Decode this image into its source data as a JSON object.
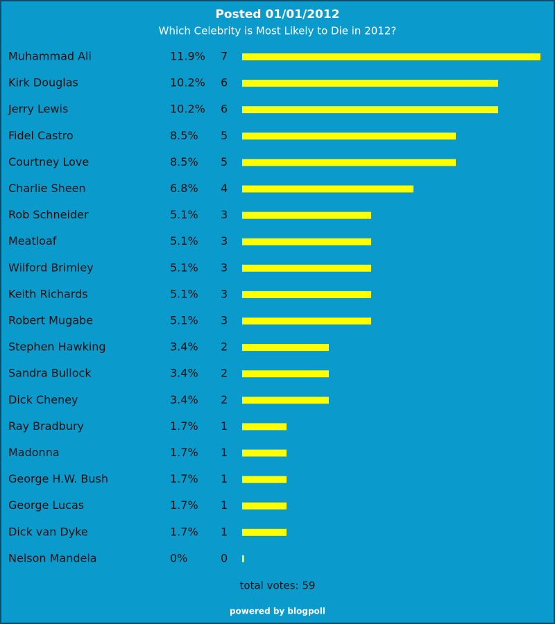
{
  "chart_data": {
    "type": "bar",
    "title": "Posted 01/01/2012",
    "subtitle": "Which Celebrity is Most Likely to Die in 2012?",
    "categories": [
      "Muhammad Ali",
      "Kirk Douglas",
      "Jerry Lewis",
      "Fidel Castro",
      "Courtney Love",
      "Charlie Sheen",
      "Rob Schneider",
      "Meatloaf",
      "Wilford Brimley",
      "Keith Richards",
      "Robert Mugabe",
      "Stephen Hawking",
      "Sandra Bullock",
      "Dick Cheney",
      "Ray Bradbury",
      "Madonna",
      "George H.W. Bush",
      "George Lucas",
      "Dick van Dyke",
      "Nelson Mandela"
    ],
    "values": [
      11.9,
      10.2,
      10.2,
      8.5,
      8.5,
      6.8,
      5.1,
      5.1,
      5.1,
      5.1,
      5.1,
      3.4,
      3.4,
      3.4,
      1.7,
      1.7,
      1.7,
      1.7,
      1.7,
      0
    ],
    "value_labels": [
      "11.9%",
      "10.2%",
      "10.2%",
      "8.5%",
      "8.5%",
      "6.8%",
      "5.1%",
      "5.1%",
      "5.1%",
      "5.1%",
      "5.1%",
      "3.4%",
      "3.4%",
      "3.4%",
      "1.7%",
      "1.7%",
      "1.7%",
      "1.7%",
      "1.7%",
      "0%"
    ],
    "votes": [
      7,
      6,
      6,
      5,
      5,
      4,
      3,
      3,
      3,
      3,
      3,
      2,
      2,
      2,
      1,
      1,
      1,
      1,
      1,
      0
    ],
    "color": "#ffff00",
    "total": "total votes: 59",
    "credit": "powered by blogpoll"
  }
}
